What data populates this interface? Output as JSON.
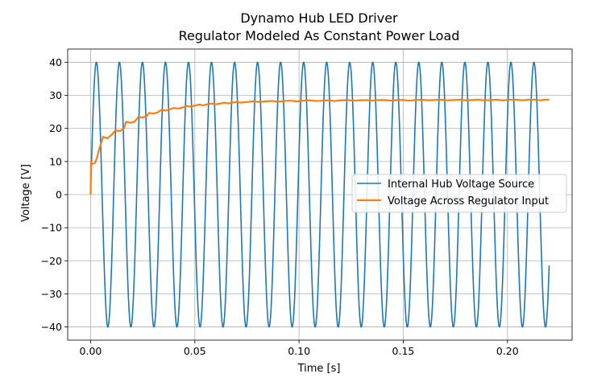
{
  "chart_data": {
    "type": "line",
    "title": "Dynamo Hub LED Driver",
    "subtitle": "Regulator Modeled As Constant Power Load",
    "xlabel": "Time [s]",
    "ylabel": "Voltage [V]",
    "xlim": [
      -0.011,
      0.231
    ],
    "ylim": [
      -44,
      44
    ],
    "x_ticks": [
      0.0,
      0.05,
      0.1,
      0.15,
      0.2
    ],
    "x_tick_labels": [
      "0.00",
      "0.05",
      "0.10",
      "0.15",
      "0.20"
    ],
    "y_ticks": [
      -40,
      -30,
      -20,
      -10,
      0,
      10,
      20,
      30,
      40
    ],
    "y_tick_labels": [
      "−40",
      "−30",
      "−20",
      "−10",
      "0",
      "10",
      "20",
      "30",
      "40"
    ],
    "grid": true,
    "legend_position": "center-right",
    "series": [
      {
        "name": "Internal Hub Voltage Source",
        "color": "#1f77b4",
        "kind": "sine",
        "amplitude": 40,
        "frequency_hz": 90.5,
        "x_start": 0.0,
        "x_end": 0.22
      },
      {
        "name": "Voltage Across Regulator Input",
        "color": "#ff7f0e",
        "points": [
          [
            0.0,
            0.0
          ],
          [
            0.0002,
            10.0
          ],
          [
            0.0008,
            9.3
          ],
          [
            0.002,
            9.5
          ],
          [
            0.003,
            11.0
          ],
          [
            0.004,
            13.5
          ],
          [
            0.006,
            17.5
          ],
          [
            0.008,
            17.0
          ],
          [
            0.01,
            18.0
          ],
          [
            0.012,
            19.5
          ],
          [
            0.014,
            19.2
          ],
          [
            0.016,
            20.0
          ],
          [
            0.017,
            22.0
          ],
          [
            0.019,
            21.7
          ],
          [
            0.021,
            22.0
          ],
          [
            0.023,
            23.5
          ],
          [
            0.025,
            23.3
          ],
          [
            0.027,
            23.8
          ],
          [
            0.028,
            24.7
          ],
          [
            0.03,
            24.5
          ],
          [
            0.032,
            24.8
          ],
          [
            0.034,
            25.6
          ],
          [
            0.036,
            25.4
          ],
          [
            0.038,
            25.8
          ],
          [
            0.04,
            26.2
          ],
          [
            0.042,
            26.0
          ],
          [
            0.044,
            26.3
          ],
          [
            0.046,
            26.8
          ],
          [
            0.048,
            26.6
          ],
          [
            0.05,
            26.9
          ],
          [
            0.052,
            27.2
          ],
          [
            0.054,
            27.0
          ],
          [
            0.056,
            27.3
          ],
          [
            0.058,
            27.5
          ],
          [
            0.06,
            27.3
          ],
          [
            0.062,
            27.5
          ],
          [
            0.064,
            27.8
          ],
          [
            0.066,
            27.6
          ],
          [
            0.068,
            27.8
          ],
          [
            0.07,
            28.0
          ],
          [
            0.072,
            27.8
          ],
          [
            0.075,
            28.0
          ],
          [
            0.078,
            28.2
          ],
          [
            0.081,
            28.0
          ],
          [
            0.084,
            28.2
          ],
          [
            0.087,
            28.3
          ],
          [
            0.09,
            28.1
          ],
          [
            0.093,
            28.3
          ],
          [
            0.096,
            28.4
          ],
          [
            0.099,
            28.2
          ],
          [
            0.102,
            28.4
          ],
          [
            0.105,
            28.5
          ],
          [
            0.108,
            28.3
          ],
          [
            0.111,
            28.4
          ],
          [
            0.114,
            28.5
          ],
          [
            0.117,
            28.3
          ],
          [
            0.12,
            28.5
          ],
          [
            0.123,
            28.6
          ],
          [
            0.126,
            28.4
          ],
          [
            0.129,
            28.5
          ],
          [
            0.132,
            28.6
          ],
          [
            0.135,
            28.4
          ],
          [
            0.138,
            28.6
          ],
          [
            0.141,
            28.6
          ],
          [
            0.144,
            28.4
          ],
          [
            0.147,
            28.6
          ],
          [
            0.15,
            28.6
          ],
          [
            0.153,
            28.4
          ],
          [
            0.156,
            28.6
          ],
          [
            0.159,
            28.7
          ],
          [
            0.162,
            28.5
          ],
          [
            0.165,
            28.6
          ],
          [
            0.168,
            28.7
          ],
          [
            0.171,
            28.5
          ],
          [
            0.174,
            28.6
          ],
          [
            0.177,
            28.7
          ],
          [
            0.18,
            28.5
          ],
          [
            0.183,
            28.6
          ],
          [
            0.186,
            28.7
          ],
          [
            0.189,
            28.5
          ],
          [
            0.192,
            28.6
          ],
          [
            0.195,
            28.7
          ],
          [
            0.198,
            28.5
          ],
          [
            0.201,
            28.7
          ],
          [
            0.204,
            28.7
          ],
          [
            0.207,
            28.5
          ],
          [
            0.21,
            28.7
          ],
          [
            0.213,
            28.7
          ],
          [
            0.216,
            28.5
          ],
          [
            0.218,
            28.7
          ],
          [
            0.22,
            28.7
          ]
        ]
      }
    ]
  }
}
